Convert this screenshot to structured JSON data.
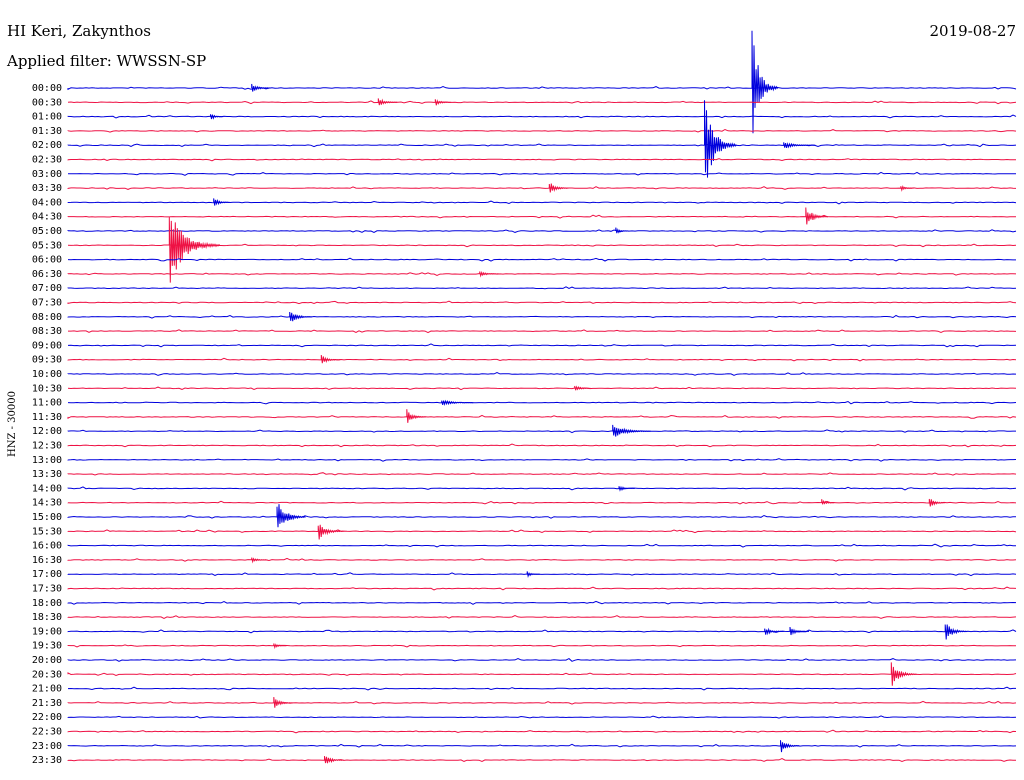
{
  "header": {
    "station": "HI Keri, Zakynthos",
    "date": "2019-08-27",
    "filter": "Applied filter: WWSSN-SP"
  },
  "ylabel": "HNZ - 30000",
  "colors": {
    "line_a": "#0000dd",
    "line_b": "#ee1144",
    "text": "#000000",
    "background": "#ffffff"
  },
  "chart_data": {
    "type": "line",
    "subtype": "helicorder",
    "ylabel": "HNZ - 30000",
    "row_minutes": 30,
    "rows": [
      "00:00",
      "00:30",
      "01:00",
      "01:30",
      "02:00",
      "02:30",
      "03:00",
      "03:30",
      "04:00",
      "04:30",
      "05:00",
      "05:30",
      "06:00",
      "06:30",
      "07:00",
      "07:30",
      "08:00",
      "08:30",
      "09:00",
      "09:30",
      "10:00",
      "10:30",
      "11:00",
      "11:30",
      "12:00",
      "12:30",
      "13:00",
      "13:30",
      "14:00",
      "14:30",
      "15:00",
      "15:30",
      "16:00",
      "16:30",
      "17:00",
      "17:30",
      "18:00",
      "18:30",
      "19:00",
      "19:30",
      "20:00",
      "20:30",
      "21:00",
      "21:30",
      "22:00",
      "22:30",
      "23:00",
      "23:30"
    ],
    "events": [
      {
        "row": "00:00",
        "minute": 21.6,
        "amp": 60,
        "dur": 0.8
      },
      {
        "row": "00:00",
        "minute": 5.8,
        "amp": 5,
        "dur": 0.6
      },
      {
        "row": "00:30",
        "minute": 9.8,
        "amp": 5,
        "dur": 0.6
      },
      {
        "row": "00:30",
        "minute": 11.6,
        "amp": 4,
        "dur": 0.5
      },
      {
        "row": "01:00",
        "minute": 4.5,
        "amp": 4,
        "dur": 0.4
      },
      {
        "row": "02:00",
        "minute": 20.1,
        "amp": 50,
        "dur": 1.0
      },
      {
        "row": "02:00",
        "minute": 22.6,
        "amp": 4,
        "dur": 1.0
      },
      {
        "row": "03:30",
        "minute": 15.2,
        "amp": 7,
        "dur": 0.6
      },
      {
        "row": "03:30",
        "minute": 26.3,
        "amp": 3,
        "dur": 0.4
      },
      {
        "row": "04:00",
        "minute": 4.6,
        "amp": 5,
        "dur": 0.5
      },
      {
        "row": "04:30",
        "minute": 23.3,
        "amp": 12,
        "dur": 0.7
      },
      {
        "row": "05:00",
        "minute": 17.3,
        "amp": 4,
        "dur": 0.4
      },
      {
        "row": "05:30",
        "minute": 3.2,
        "amp": 42,
        "dur": 1.6
      },
      {
        "row": "06:30",
        "minute": 13.0,
        "amp": 3,
        "dur": 0.6
      },
      {
        "row": "08:00",
        "minute": 7.0,
        "amp": 8,
        "dur": 0.7
      },
      {
        "row": "09:30",
        "minute": 8.0,
        "amp": 5,
        "dur": 0.6
      },
      {
        "row": "10:30",
        "minute": 16.0,
        "amp": 4,
        "dur": 0.5
      },
      {
        "row": "11:00",
        "minute": 11.8,
        "amp": 3,
        "dur": 1.0
      },
      {
        "row": "11:30",
        "minute": 10.7,
        "amp": 8,
        "dur": 0.6
      },
      {
        "row": "12:00",
        "minute": 17.2,
        "amp": 8,
        "dur": 1.2
      },
      {
        "row": "14:00",
        "minute": 17.4,
        "amp": 3,
        "dur": 0.5
      },
      {
        "row": "14:30",
        "minute": 27.2,
        "amp": 6,
        "dur": 0.5
      },
      {
        "row": "14:30",
        "minute": 23.8,
        "amp": 4,
        "dur": 0.4
      },
      {
        "row": "15:00",
        "minute": 6.6,
        "amp": 20,
        "dur": 0.9
      },
      {
        "row": "15:30",
        "minute": 7.9,
        "amp": 10,
        "dur": 0.8
      },
      {
        "row": "16:30",
        "minute": 5.8,
        "amp": 3,
        "dur": 0.5
      },
      {
        "row": "17:00",
        "minute": 14.5,
        "amp": 3,
        "dur": 0.4
      },
      {
        "row": "19:00",
        "minute": 27.7,
        "amp": 11,
        "dur": 0.7
      },
      {
        "row": "19:00",
        "minute": 22.0,
        "amp": 5,
        "dur": 0.6
      },
      {
        "row": "19:00",
        "minute": 22.8,
        "amp": 5,
        "dur": 0.6
      },
      {
        "row": "19:30",
        "minute": 6.5,
        "amp": 3,
        "dur": 0.4
      },
      {
        "row": "20:30",
        "minute": 26.0,
        "amp": 14,
        "dur": 0.8
      },
      {
        "row": "21:30",
        "minute": 6.5,
        "amp": 6,
        "dur": 0.6
      },
      {
        "row": "23:00",
        "minute": 22.5,
        "amp": 8,
        "dur": 0.6
      },
      {
        "row": "23:30",
        "minute": 8.1,
        "amp": 7,
        "dur": 0.6
      }
    ]
  }
}
